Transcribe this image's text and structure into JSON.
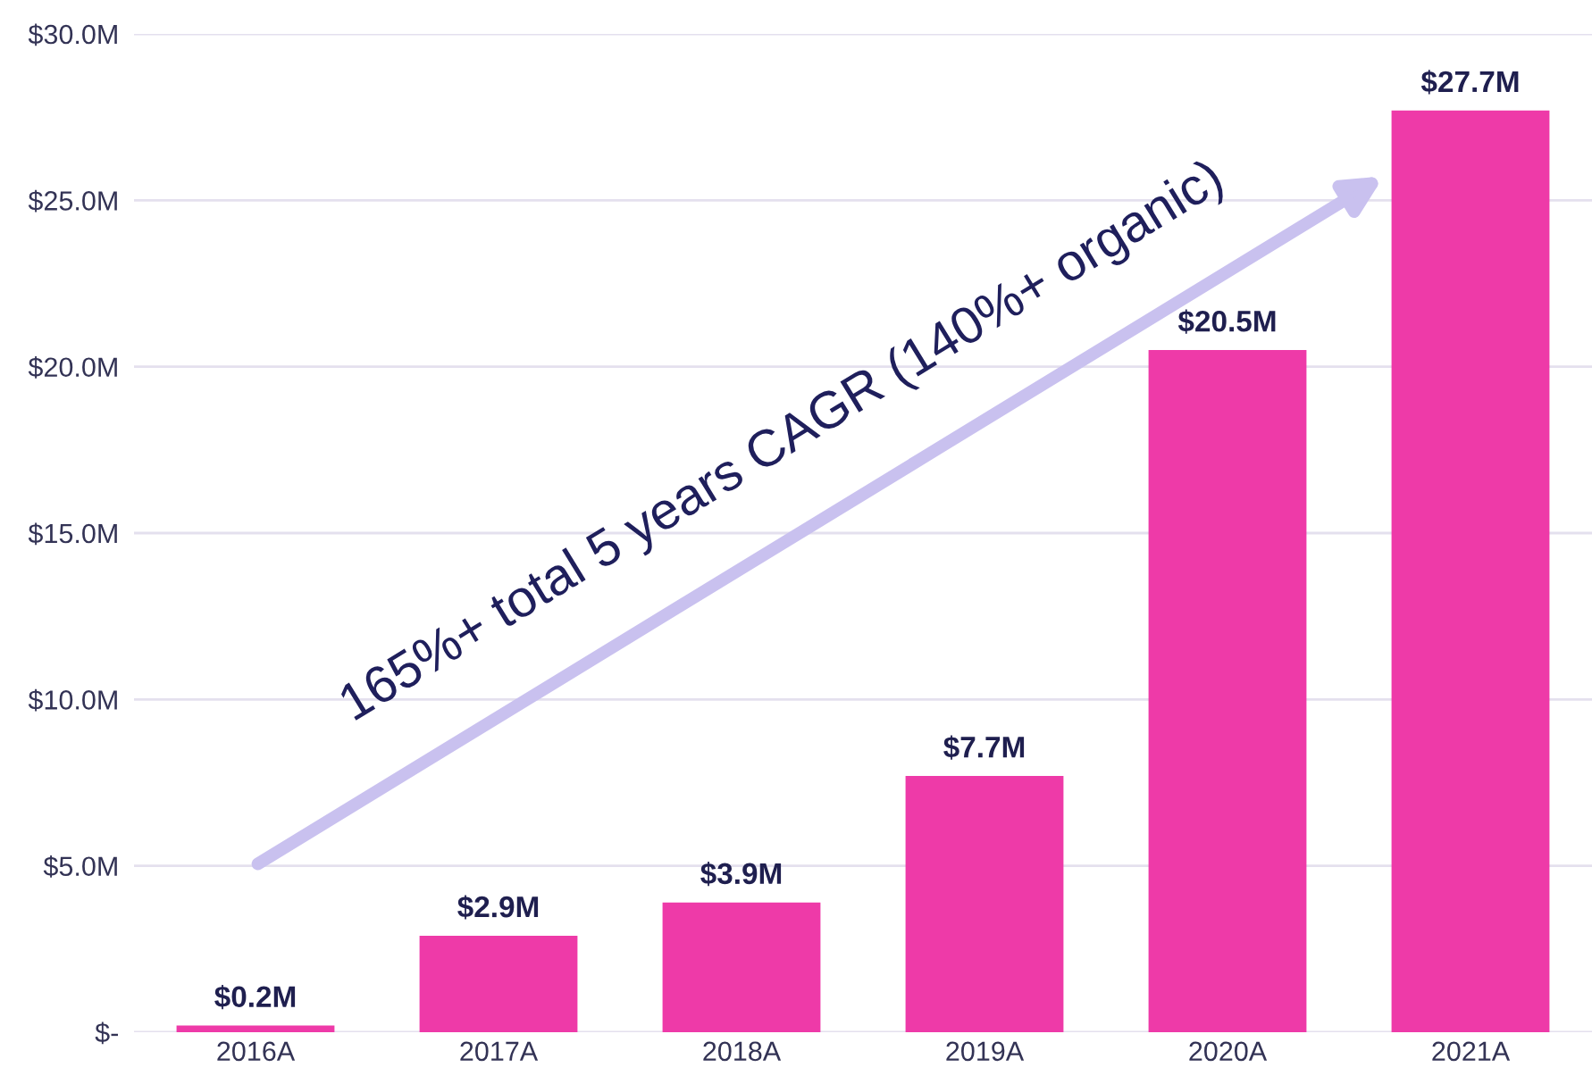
{
  "chart_data": {
    "type": "bar",
    "categories": [
      "2016A",
      "2017A",
      "2018A",
      "2019A",
      "2020A",
      "2021A"
    ],
    "values": [
      0.2,
      2.9,
      3.9,
      7.7,
      20.5,
      27.7
    ],
    "value_labels": [
      "$0.2M",
      "$2.9M",
      "$3.9M",
      "$7.7M",
      "$20.5M",
      "$27.7M"
    ],
    "color": "#ee3aa8",
    "ylim": [
      0,
      30
    ],
    "yticks": [
      {
        "value": 0,
        "label": "$-"
      },
      {
        "value": 5,
        "label": "$5.0M"
      },
      {
        "value": 10,
        "label": "$10.0M"
      },
      {
        "value": 15,
        "label": "$15.0M"
      },
      {
        "value": 20,
        "label": "$20.0M"
      },
      {
        "value": 25,
        "label": "$25.0M"
      },
      {
        "value": 30,
        "label": "$30.0M"
      }
    ],
    "grid": "y",
    "annotations": [
      "165%+ total 5 years CAGR (140%+ organic)"
    ]
  }
}
